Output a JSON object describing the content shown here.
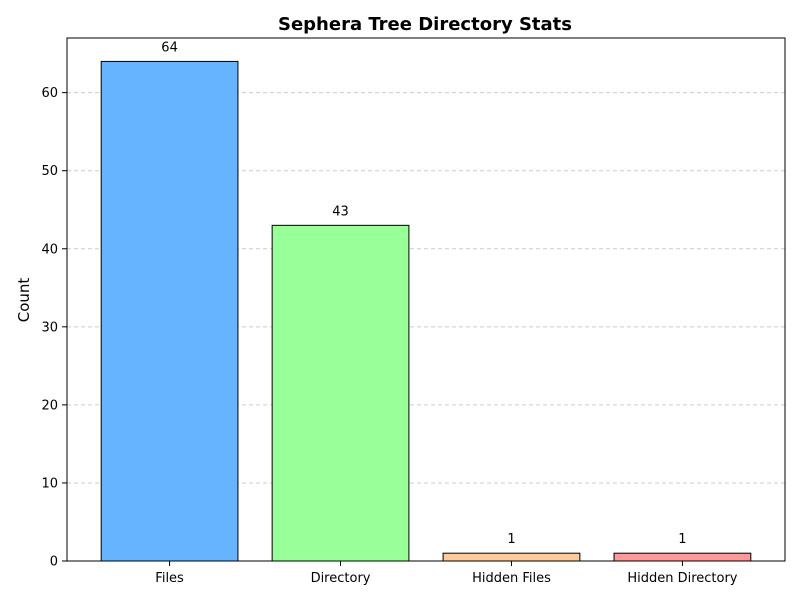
{
  "chart_data": {
    "type": "bar",
    "title": "Sephera Tree Directory Stats",
    "xlabel": "",
    "ylabel": "Count",
    "categories": [
      "Files",
      "Directory",
      "Hidden Files",
      "Hidden Directory"
    ],
    "values": [
      64,
      43,
      1,
      1
    ],
    "data_labels": [
      "64",
      "43",
      "1",
      "1"
    ],
    "colors": [
      "#66b3ff",
      "#99ff99",
      "#ffcc99",
      "#ff9999"
    ],
    "edge_color": "#000000",
    "ylim": [
      0,
      67
    ],
    "yticks": [
      0,
      10,
      20,
      30,
      40,
      50,
      60
    ],
    "ytick_labels": [
      "0",
      "10",
      "20",
      "30",
      "40",
      "50",
      "60"
    ],
    "grid": {
      "axis": "y",
      "style": "dashed",
      "color": "#cccccc"
    }
  }
}
